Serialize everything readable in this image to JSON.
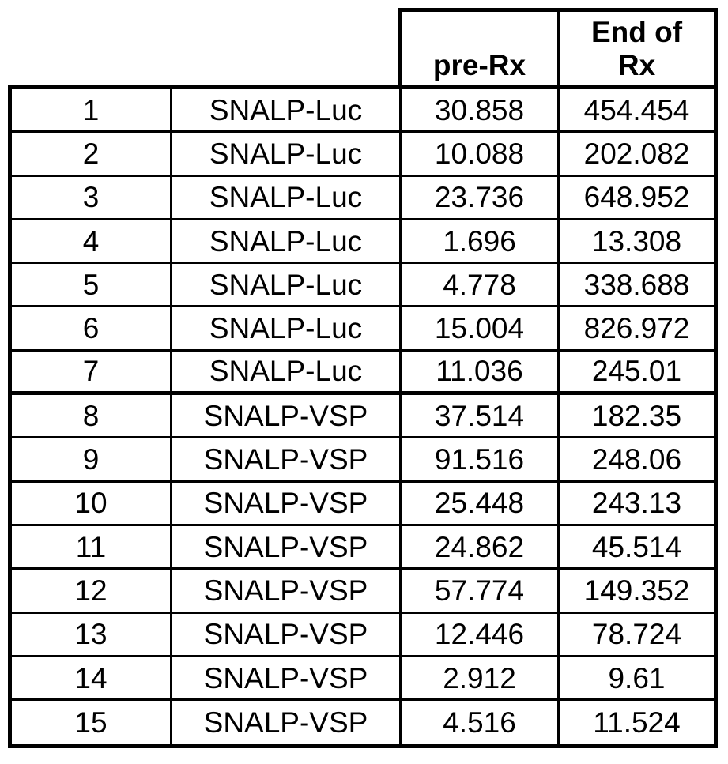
{
  "colors": {
    "background": "#ffffff",
    "text": "#000000",
    "border": "#000000"
  },
  "table": {
    "header": {
      "pre_rx": "pre-Rx",
      "end_rx": "End of\nRx"
    },
    "groups": [
      "SNALP-Luc",
      "SNALP-VSP"
    ],
    "rows": [
      {
        "n": "1",
        "group": "SNALP-Luc",
        "pre_rx": "30.858",
        "end_rx": "454.454"
      },
      {
        "n": "2",
        "group": "SNALP-Luc",
        "pre_rx": "10.088",
        "end_rx": "202.082"
      },
      {
        "n": "3",
        "group": "SNALP-Luc",
        "pre_rx": "23.736",
        "end_rx": "648.952"
      },
      {
        "n": "4",
        "group": "SNALP-Luc",
        "pre_rx": "1.696",
        "end_rx": "13.308"
      },
      {
        "n": "5",
        "group": "SNALP-Luc",
        "pre_rx": "4.778",
        "end_rx": "338.688"
      },
      {
        "n": "6",
        "group": "SNALP-Luc",
        "pre_rx": "15.004",
        "end_rx": "826.972"
      },
      {
        "n": "7",
        "group": "SNALP-Luc",
        "pre_rx": "11.036",
        "end_rx": "245.01"
      },
      {
        "n": "8",
        "group": "SNALP-VSP",
        "pre_rx": "37.514",
        "end_rx": "182.35"
      },
      {
        "n": "9",
        "group": "SNALP-VSP",
        "pre_rx": "91.516",
        "end_rx": "248.06"
      },
      {
        "n": "10",
        "group": "SNALP-VSP",
        "pre_rx": "25.448",
        "end_rx": "243.13"
      },
      {
        "n": "11",
        "group": "SNALP-VSP",
        "pre_rx": "24.862",
        "end_rx": "45.514"
      },
      {
        "n": "12",
        "group": "SNALP-VSP",
        "pre_rx": "57.774",
        "end_rx": "149.352"
      },
      {
        "n": "13",
        "group": "SNALP-VSP",
        "pre_rx": "12.446",
        "end_rx": "78.724"
      },
      {
        "n": "14",
        "group": "SNALP-VSP",
        "pre_rx": "2.912",
        "end_rx": "9.61"
      },
      {
        "n": "15",
        "group": "SNALP-VSP",
        "pre_rx": "4.516",
        "end_rx": "11.524"
      }
    ]
  }
}
